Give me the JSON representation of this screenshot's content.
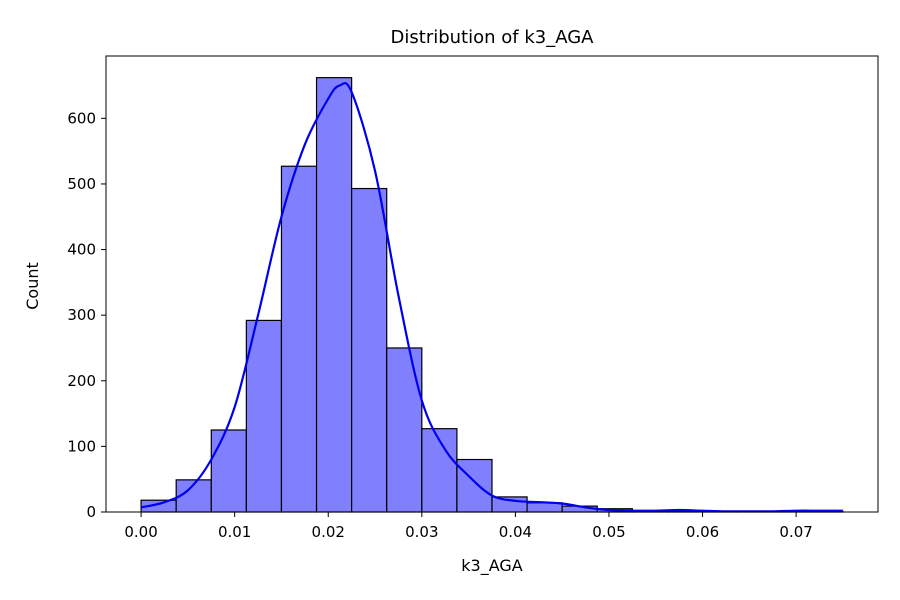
{
  "chart_data": {
    "type": "bar",
    "subtype": "histogram",
    "title": "Distribution of k3_AGA",
    "xlabel": "k3_AGA",
    "ylabel": "Count",
    "xlim": [
      -0.00375,
      0.07875
    ],
    "ylim": [
      0,
      695
    ],
    "xticks": [
      "0.00",
      "0.01",
      "0.02",
      "0.03",
      "0.04",
      "0.05",
      "0.06",
      "0.07"
    ],
    "xtick_values": [
      0,
      0.01,
      0.02,
      0.03,
      0.04,
      0.05,
      0.06,
      0.07
    ],
    "yticks": [
      "0",
      "100",
      "200",
      "300",
      "400",
      "500",
      "600"
    ],
    "ytick_values": [
      0,
      100,
      200,
      300,
      400,
      500,
      600
    ],
    "bins": [
      {
        "x0": 0.0,
        "x1": 0.00375,
        "count": 18
      },
      {
        "x0": 0.00375,
        "x1": 0.0075,
        "count": 49
      },
      {
        "x0": 0.0075,
        "x1": 0.01125,
        "count": 125
      },
      {
        "x0": 0.01125,
        "x1": 0.015,
        "count": 292
      },
      {
        "x0": 0.015,
        "x1": 0.01875,
        "count": 527
      },
      {
        "x0": 0.01875,
        "x1": 0.0225,
        "count": 662
      },
      {
        "x0": 0.0225,
        "x1": 0.02625,
        "count": 493
      },
      {
        "x0": 0.02625,
        "x1": 0.03,
        "count": 250
      },
      {
        "x0": 0.03,
        "x1": 0.03375,
        "count": 127
      },
      {
        "x0": 0.03375,
        "x1": 0.0375,
        "count": 80
      },
      {
        "x0": 0.0375,
        "x1": 0.04125,
        "count": 23
      },
      {
        "x0": 0.04125,
        "x1": 0.045,
        "count": 14
      },
      {
        "x0": 0.045,
        "x1": 0.04875,
        "count": 9
      },
      {
        "x0": 0.04875,
        "x1": 0.0525,
        "count": 5
      },
      {
        "x0": 0.0525,
        "x1": 0.05625,
        "count": 1
      },
      {
        "x0": 0.05625,
        "x1": 0.06,
        "count": 1
      },
      {
        "x0": 0.06,
        "x1": 0.06375,
        "count": 1
      },
      {
        "x0": 0.06375,
        "x1": 0.0675,
        "count": 1
      },
      {
        "x0": 0.0675,
        "x1": 0.07125,
        "count": 1
      },
      {
        "x0": 0.07125,
        "x1": 0.075,
        "count": 1
      }
    ],
    "kde": {
      "x": [
        0.0,
        0.0025,
        0.005,
        0.0075,
        0.01,
        0.0125,
        0.015,
        0.0175,
        0.02,
        0.0212,
        0.0225,
        0.025,
        0.0275,
        0.03,
        0.0325,
        0.035,
        0.0375,
        0.04,
        0.0425,
        0.045,
        0.0475,
        0.05,
        0.0525,
        0.055,
        0.0575,
        0.06,
        0.0625,
        0.065,
        0.0675,
        0.07,
        0.0725,
        0.075
      ],
      "y": [
        7,
        15,
        33,
        80,
        160,
        300,
        450,
        560,
        630,
        650,
        640,
        520,
        330,
        170,
        95,
        55,
        25,
        17,
        15,
        13,
        7,
        3,
        2,
        2,
        3,
        2,
        1,
        1,
        1,
        2,
        2,
        2
      ]
    },
    "bar_color": "#8080ff",
    "bar_edge_color": "#000000",
    "kde_color": "#0000ee",
    "grid": false,
    "legend": "none"
  }
}
